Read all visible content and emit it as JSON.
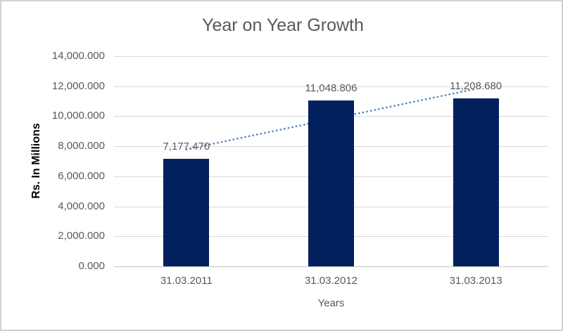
{
  "chart_data": {
    "type": "bar",
    "title": "Year on Year Growth",
    "categories": [
      "31.03.2011",
      "31.03.2012",
      "31.03.2013"
    ],
    "values": [
      7177.47,
      11048.806,
      11208.68
    ],
    "data_labels": [
      "7,177.470",
      "11,048.806",
      "11,208.680"
    ],
    "xlabel": "Years",
    "ylabel": "Rs. In Millions",
    "ylim": [
      0,
      14000
    ],
    "ytick_step": 2000,
    "ytick_labels": [
      "0.000",
      "2,000.000",
      "4,000.000",
      "6,000.000",
      "8,000.000",
      "10,000.000",
      "12,000.000",
      "14,000.000"
    ],
    "grid": true,
    "legend": false,
    "trendline": "linear-dotted",
    "colors": {
      "bar": "#02215c",
      "trendline": "#4a7ebb",
      "title_text": "#595959",
      "tick_text": "#595959",
      "gridline": "#d9d9d9",
      "axis_line": "#c6c6c6",
      "axis_title_text": "#000000",
      "chart_border": "#d2d0d0",
      "background": "#ffffff"
    }
  }
}
